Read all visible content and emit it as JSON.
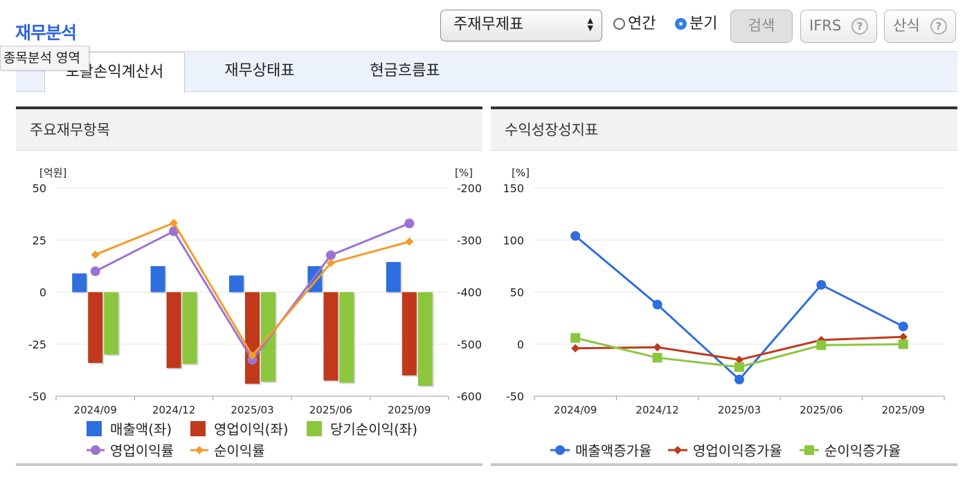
{
  "header": {
    "title": "재무분석",
    "tooltip": "종목분석 영역"
  },
  "controls": {
    "select_value": "주재무제표",
    "radio_annual": "연간",
    "radio_quarter": "분기",
    "radio_selected": "분기",
    "search_button": "검색",
    "ifrs_button": "IFRS",
    "formula_button": "산식"
  },
  "tabs": [
    {
      "label": "포괄손익계산서",
      "active": true
    },
    {
      "label": "재무상태표",
      "active": false
    },
    {
      "label": "현금흐름표",
      "active": false
    }
  ],
  "panels": {
    "left_title": "주요재무항목",
    "right_title": "수익성장성지표"
  },
  "colors": {
    "revenue": "#2f6ede",
    "operating_income": "#c0391b",
    "net_income": "#8cc63f",
    "operating_margin": "#9b72d4",
    "net_margin": "#f29c2a",
    "accent": "#2d64d9"
  },
  "chart_data": [
    {
      "type": "bar",
      "title": "주요재무항목",
      "left_unit": "[억원]",
      "right_unit": "[%]",
      "categories": [
        "2024/09",
        "2024/12",
        "2025/03",
        "2025/06",
        "2025/09"
      ],
      "ylim": [
        -50,
        50
      ],
      "y_ticks": [
        50,
        25,
        0,
        -25,
        -50
      ],
      "y2lim": [
        -600,
        -200
      ],
      "y2_ticks": [
        -200,
        -300,
        -400,
        -500,
        -600
      ],
      "series": [
        {
          "name": "매출액(좌)",
          "kind": "bar",
          "axis": "left",
          "values": [
            9,
            12.5,
            8,
            12.5,
            14.5
          ]
        },
        {
          "name": "영업이익(좌)",
          "kind": "bar",
          "axis": "left",
          "values": [
            -34,
            -36.5,
            -44,
            -42.5,
            -40
          ]
        },
        {
          "name": "당기순이익(좌)",
          "kind": "bar",
          "axis": "left",
          "values": [
            -30,
            -34.5,
            -43,
            -43.5,
            -45
          ]
        }
      ],
      "line_series": [
        {
          "name": "영업이익률",
          "marker": "circle",
          "axis": "right",
          "values": [
            -360,
            -283,
            -530,
            -329,
            -268
          ]
        },
        {
          "name": "순이익률",
          "marker": "diamond",
          "axis": "right",
          "values": [
            -328,
            -267,
            -522,
            -344,
            -303
          ]
        }
      ]
    },
    {
      "type": "line",
      "title": "수익성장성지표",
      "unit": "[%]",
      "categories": [
        "2024/09",
        "2024/12",
        "2025/03",
        "2025/06",
        "2025/09"
      ],
      "ylim": [
        -50,
        150
      ],
      "y_ticks": [
        150,
        100,
        50,
        0,
        -50
      ],
      "series": [
        {
          "name": "매출액증가율",
          "marker": "circle",
          "values": [
            104,
            38,
            -34,
            57,
            17
          ]
        },
        {
          "name": "영업이익증가율",
          "marker": "diamond",
          "values": [
            -4,
            -3,
            -15,
            4,
            7
          ]
        },
        {
          "name": "순이익증가율",
          "marker": "square",
          "values": [
            6,
            -13,
            -22,
            -1,
            0
          ]
        }
      ]
    }
  ]
}
